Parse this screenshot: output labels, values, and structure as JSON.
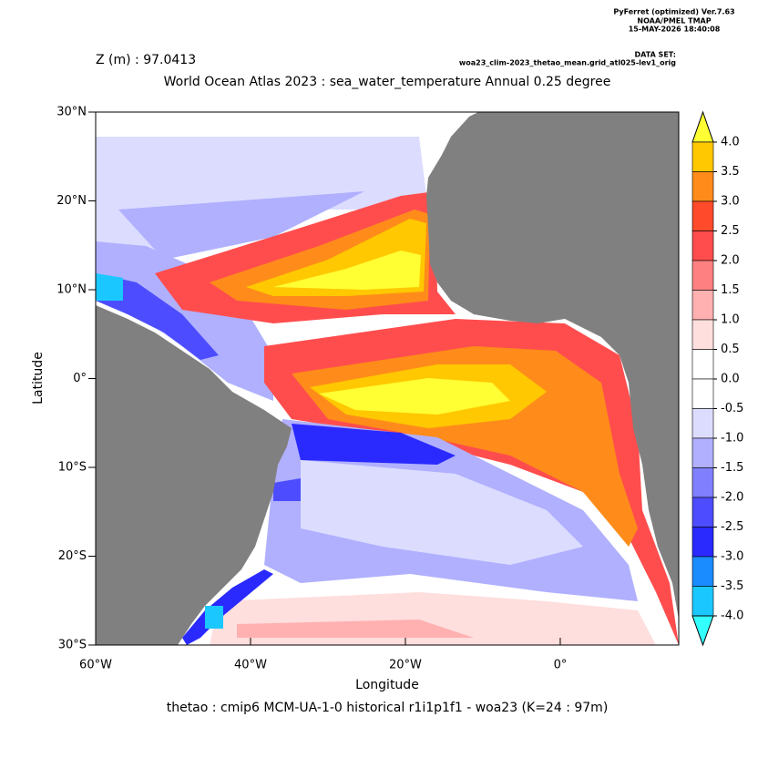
{
  "header": {
    "software": "PyFerret (optimized) Ver.7.63",
    "org": "NOAA/PMEL TMAP",
    "date": "15-MAY-2026 18:40:08",
    "dataset_label": "DATA SET:",
    "dataset": "woa23_clim-2023_thetao_mean.grid_atl025-lev1_orig",
    "depth": "Z (m) : 97.0413"
  },
  "chart_data": {
    "type": "shaded-map",
    "title": "World Ocean Atlas 2023 : sea_water_temperature Annual  0.25 degree",
    "x_label": "Longitude",
    "y_label": "Latitude",
    "footer": "thetao : cmip6 MCM-UA-1-0 historical r1i1p1f1 - woa23  (K=24 : 97m)",
    "xlim": [
      -60,
      15.3
    ],
    "ylim": [
      -30,
      30
    ],
    "xticks": [
      {
        "value": -60,
        "label": "60°W"
      },
      {
        "value": -40,
        "label": "40°W"
      },
      {
        "value": -20,
        "label": "20°W"
      },
      {
        "value": 0,
        "label": "0°"
      }
    ],
    "yticks": [
      {
        "value": 30,
        "label": "30°N"
      },
      {
        "value": 20,
        "label": "20°N"
      },
      {
        "value": 10,
        "label": "10°N"
      },
      {
        "value": 0,
        "label": "0°"
      },
      {
        "value": -10,
        "label": "10°S"
      },
      {
        "value": -20,
        "label": "20°S"
      },
      {
        "value": -30,
        "label": "30°S"
      }
    ],
    "colorbar": {
      "levels": [
        {
          "value": 4,
          "label": "4.0"
        },
        {
          "value": 3.5,
          "label": "3.5"
        },
        {
          "value": 3,
          "label": "3.0"
        },
        {
          "value": 2.5,
          "label": "2.5"
        },
        {
          "value": 2,
          "label": "2.0"
        },
        {
          "value": 1.5,
          "label": "1.5"
        },
        {
          "value": 1,
          "label": "1.0"
        },
        {
          "value": 0.5,
          "label": "0.5"
        },
        {
          "value": 0,
          "label": "0.0"
        },
        {
          "value": -0.5,
          "label": "-0.5"
        },
        {
          "value": -1,
          "label": "-1.0"
        },
        {
          "value": -1.5,
          "label": "-1.5"
        },
        {
          "value": -2,
          "label": "-2.0"
        },
        {
          "value": -2.5,
          "label": "-2.5"
        },
        {
          "value": -3,
          "label": "-3.0"
        },
        {
          "value": -3.5,
          "label": "-3.5"
        },
        {
          "value": -4,
          "label": "-4.0"
        }
      ],
      "colors": [
        "#ffff33",
        "#ffc800",
        "#ff8c1a",
        "#ff4b2b",
        "#ff4d4d",
        "#ff8080",
        "#ffb0b0",
        "#ffdede",
        "#ffffff",
        "#ffffff",
        "#dcdcff",
        "#b0b0ff",
        "#8080ff",
        "#4d4dff",
        "#2a2aff",
        "#1a8cff",
        "#1ac8ff",
        "#33ffff"
      ]
    }
  }
}
